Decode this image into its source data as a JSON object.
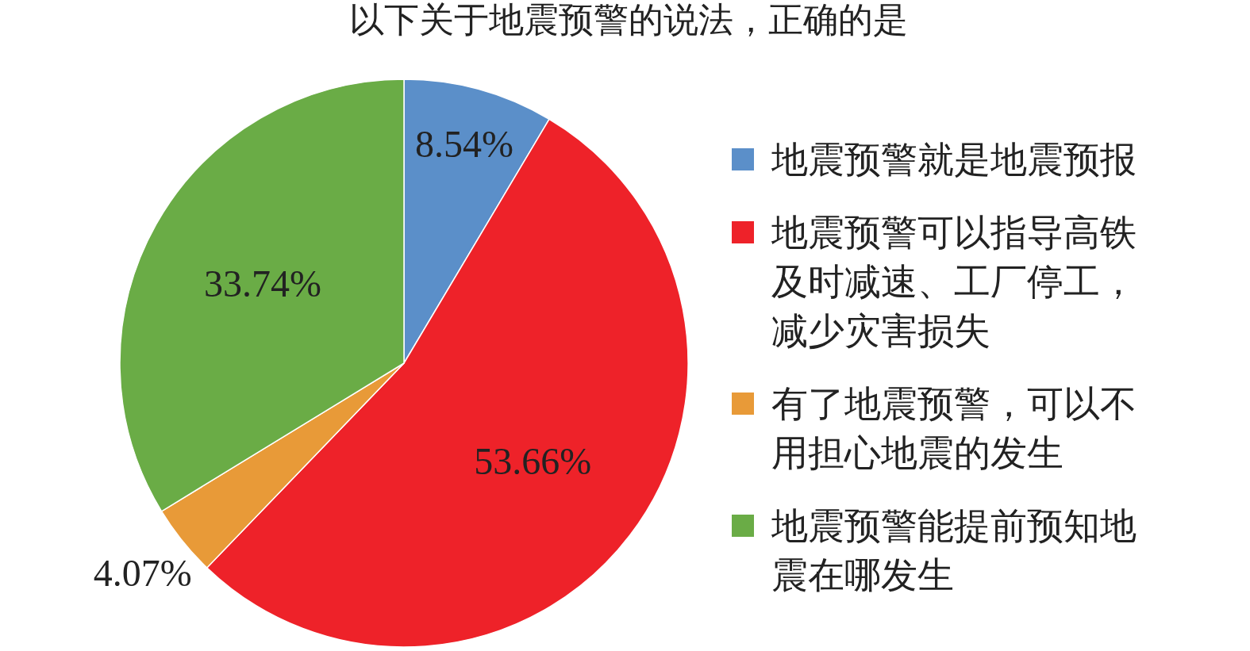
{
  "chart_data": {
    "type": "pie",
    "title": "以下关于地震预警的说法，正确的是",
    "categories": [
      "地震预警就是地震预报",
      "地震预警可以指导高铁及时减速、工厂停工，减少灾害损失",
      "有了地震预警，可以不用担心地震的发生",
      "地震预警能提前预知地震在哪发生"
    ],
    "values": [
      8.54,
      53.66,
      4.07,
      33.74
    ],
    "value_labels": [
      "8.54%",
      "53.66%",
      "4.07%",
      "33.74%"
    ],
    "colors": [
      "#5b8fc9",
      "#ee2229",
      "#e89a38",
      "#6aac46"
    ],
    "legend": "right"
  }
}
